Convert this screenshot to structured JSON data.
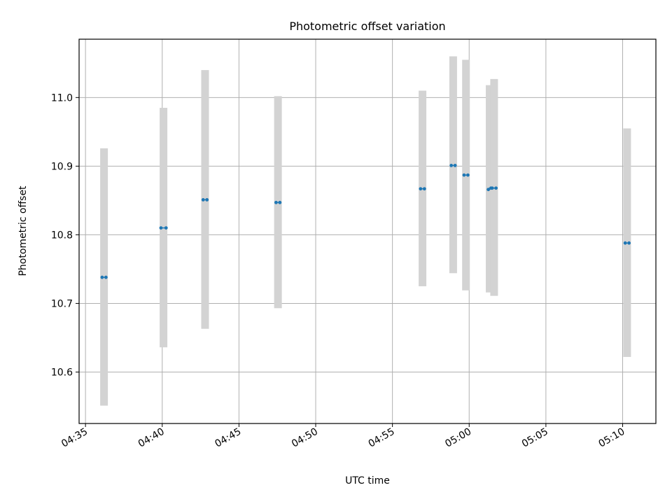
{
  "chart_data": {
    "type": "scatter",
    "title": "Photometric offset variation",
    "xlabel": "UTC time",
    "ylabel": "Photometric offset",
    "x_ticks": [
      "04:35",
      "04:40",
      "04:45",
      "04:50",
      "04:55",
      "05:00",
      "05:05",
      "05:10"
    ],
    "y_ticks": [
      "10.6",
      "10.7",
      "10.8",
      "10.9",
      "11.0"
    ],
    "xlim": [
      "04:34:35",
      "05:12:10"
    ],
    "ylim": [
      10.525,
      11.085
    ],
    "grid": true,
    "errorbar_color": "#d3d3d3",
    "marker_color": "#1f77b4",
    "points": [
      {
        "x": [
          "04:36:05",
          "04:36:20"
        ],
        "y": [
          10.738,
          10.738
        ],
        "err_low": 10.551,
        "err_high": 10.926
      },
      {
        "x": [
          "04:39:55",
          "04:40:15"
        ],
        "y": [
          10.81,
          10.81
        ],
        "err_low": 10.636,
        "err_high": 10.985
      },
      {
        "x": [
          "04:42:40",
          "04:42:55"
        ],
        "y": [
          10.851,
          10.851
        ],
        "err_low": 10.663,
        "err_high": 11.04
      },
      {
        "x": [
          "04:47:25",
          "04:47:40"
        ],
        "y": [
          10.847,
          10.847
        ],
        "err_low": 10.693,
        "err_high": 11.002
      },
      {
        "x": [
          "04:56:50",
          "04:57:05"
        ],
        "y": [
          10.867,
          10.867
        ],
        "err_low": 10.725,
        "err_high": 11.01
      },
      {
        "x": [
          "04:58:50",
          "04:59:05"
        ],
        "y": [
          10.901,
          10.901
        ],
        "err_low": 10.744,
        "err_high": 11.06
      },
      {
        "x": [
          "04:59:40",
          "04:59:55"
        ],
        "y": [
          10.887,
          10.887
        ],
        "err_low": 10.719,
        "err_high": 11.055
      },
      {
        "x": [
          "05:01:15",
          "05:01:25"
        ],
        "y": [
          10.866,
          10.868
        ],
        "err_low": 10.716,
        "err_high": 11.018
      },
      {
        "x": [
          "05:01:30",
          "05:01:45"
        ],
        "y": [
          10.868,
          10.868
        ],
        "err_low": 10.711,
        "err_high": 11.027
      },
      {
        "x": [
          "05:10:10",
          "05:10:25"
        ],
        "y": [
          10.788,
          10.788
        ],
        "err_low": 10.622,
        "err_high": 10.955
      }
    ]
  }
}
